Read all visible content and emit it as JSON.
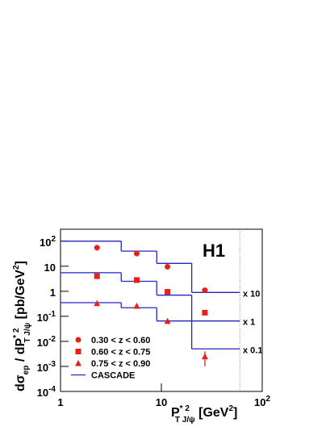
{
  "chart_data": {
    "type": "scatter",
    "xscale": "log",
    "yscale": "log",
    "xlim": [
      1,
      100
    ],
    "ylim": [
      0.0001,
      300
    ],
    "xticks": [
      1,
      10,
      {
        "value": 100,
        "label": "10",
        "exp": "2"
      }
    ],
    "yticks": [
      {
        "value": 0.0001,
        "label": "10",
        "exp": "-4"
      },
      {
        "value": 0.001,
        "label": "10",
        "exp": "-3"
      },
      {
        "value": 0.01,
        "label": "10",
        "exp": "-2"
      },
      {
        "value": 0.1,
        "label": "10",
        "exp": "-1"
      },
      1,
      10,
      {
        "value": 100,
        "label": "10",
        "exp": "2"
      }
    ],
    "ylabel": [
      "dσ",
      "ep",
      " / dP",
      "* 2",
      "T J/ψ",
      " [pb/GeV",
      "2",
      "]"
    ],
    "xlabel": [
      "P",
      "* 2",
      "T J/ψ",
      " [GeV",
      "2",
      "]"
    ],
    "experiment": "H1",
    "series": [
      {
        "name": "0.30 < z < 0.60",
        "color": "#e8201a",
        "marker": "circle",
        "x": [
          2.3,
          5.7,
          11.5,
          27
        ],
        "values": [
          55,
          32,
          9.5,
          1.1
        ]
      },
      {
        "name": "0.60 < z < 0.75",
        "color": "#e8201a",
        "marker": "square",
        "x": [
          2.3,
          5.7,
          11.5,
          27
        ],
        "values": [
          4,
          2.8,
          0.95,
          0.14
        ]
      },
      {
        "name": "0.75 < z < 0.90",
        "color": "#e8201a",
        "marker": "triangle",
        "x": [
          2.3,
          5.7,
          11.5,
          27
        ],
        "values": [
          0.33,
          0.26,
          0.065,
          0.0025
        ],
        "errors": [
          null,
          null,
          null,
          0.0015
        ]
      }
    ],
    "model": {
      "name": "CASCADE",
      "color": "#2424c8",
      "bins": [
        1,
        4,
        9,
        20,
        60
      ],
      "curves": [
        [
          100,
          40,
          13,
          0.9
        ],
        [
          5.5,
          2.5,
          0.7,
          0.065
        ],
        [
          0.35,
          0.22,
          0.065,
          0.005
        ]
      ],
      "scales": [
        "x 10",
        "x 1",
        "x 0.1"
      ]
    },
    "vline": 60
  }
}
